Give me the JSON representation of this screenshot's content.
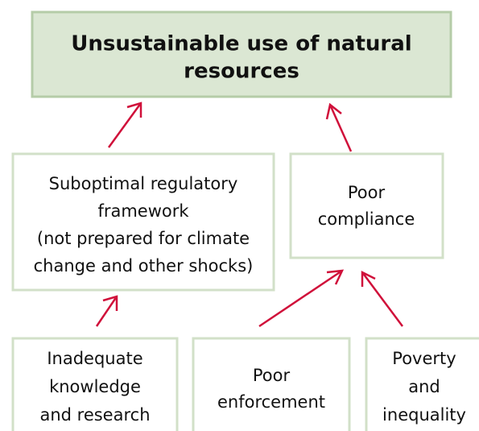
{
  "nodes": [
    {
      "lines": [
        "Unsustainable use of natural",
        "resources"
      ]
    },
    {
      "lines": [
        "Suboptimal regulatory",
        "framework",
        "(not prepared for climate",
        "change and other shocks)"
      ]
    },
    {
      "lines": [
        "Poor",
        "compliance"
      ]
    },
    {
      "lines": [
        "Inadequate",
        "knowledge",
        "and research"
      ]
    },
    {
      "lines": [
        "Poor",
        "enforcement"
      ]
    },
    {
      "lines": [
        "Poverty",
        "and",
        "inequality"
      ]
    }
  ]
}
